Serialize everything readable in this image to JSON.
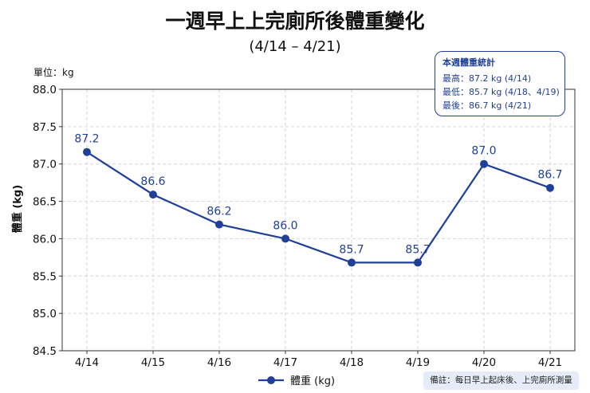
{
  "chart_data": {
    "type": "line",
    "title": "一週早上上完廁所後體重變化",
    "subtitle": "(4/14 – 4/21)",
    "unit_label": "單位：kg",
    "ylabel": "體重 (kg)",
    "xlabel": "",
    "categories": [
      "4/14",
      "4/15",
      "4/16",
      "4/17",
      "4/18",
      "4/19",
      "4/20",
      "4/21"
    ],
    "series": [
      {
        "name": "體重 (kg)",
        "values": [
          87.16,
          86.59,
          86.19,
          86.0,
          85.68,
          85.68,
          87.0,
          86.68
        ]
      }
    ],
    "data_labels": [
      "87.2",
      "86.6",
      "86.2",
      "86.0",
      "85.7",
      "85.7",
      "87.0",
      "86.7"
    ],
    "ylim": [
      84.5,
      88.0
    ],
    "yticks": [
      "84.5",
      "85.0",
      "85.5",
      "86.0",
      "86.5",
      "87.0",
      "87.5",
      "88.0"
    ],
    "grid": true,
    "legend_position": "bottom-center",
    "line_color": "#1f3f99"
  },
  "stats": {
    "title": "本週體重統計",
    "max_line": "最高：87.2 kg (4/14)",
    "min_line": "最低：85.7 kg (4/18、4/19)",
    "last_line": "最後：86.7 kg (4/21)"
  },
  "note": "備註：每日早上起床後、上完廁所測量"
}
